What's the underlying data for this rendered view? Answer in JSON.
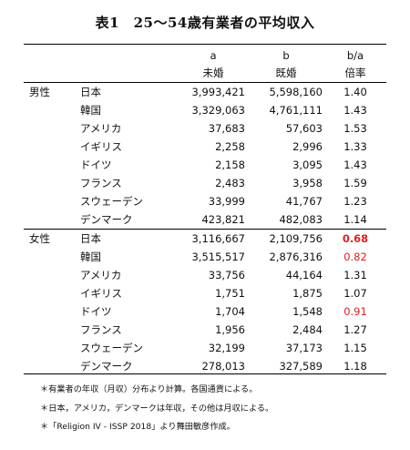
{
  "title": "表1　25～54歳有業者の平均収入",
  "header": {
    "a_label": "a",
    "a_name": "未婚",
    "b_label": "b",
    "b_name": "既婚",
    "ratio_label": "b/a",
    "ratio_name": "倍率"
  },
  "rows": [
    {
      "gender": "男性",
      "country": "日本",
      "a": "3,993,421",
      "b": "5,598,160",
      "ratio": "1.40",
      "style": ""
    },
    {
      "gender": "",
      "country": "韓国",
      "a": "3,329,063",
      "b": "4,761,111",
      "ratio": "1.43",
      "style": ""
    },
    {
      "gender": "",
      "country": "アメリカ",
      "a": "37,683",
      "b": "57,603",
      "ratio": "1.53",
      "style": ""
    },
    {
      "gender": "",
      "country": "イギリス",
      "a": "2,258",
      "b": "2,996",
      "ratio": "1.33",
      "style": ""
    },
    {
      "gender": "",
      "country": "ドイツ",
      "a": "2,158",
      "b": "3,095",
      "ratio": "1.43",
      "style": ""
    },
    {
      "gender": "",
      "country": "フランス",
      "a": "2,483",
      "b": "3,958",
      "ratio": "1.59",
      "style": ""
    },
    {
      "gender": "",
      "country": "スウェーデン",
      "a": "33,999",
      "b": "41,767",
      "ratio": "1.23",
      "style": ""
    },
    {
      "gender": "",
      "country": "デンマーク",
      "a": "423,821",
      "b": "482,083",
      "ratio": "1.14",
      "style": ""
    },
    {
      "gender": "女性",
      "country": "日本",
      "a": "3,116,667",
      "b": "2,109,756",
      "ratio": "0.68",
      "style": "red bold"
    },
    {
      "gender": "",
      "country": "韓国",
      "a": "3,515,517",
      "b": "2,876,316",
      "ratio": "0.82",
      "style": "red"
    },
    {
      "gender": "",
      "country": "アメリカ",
      "a": "33,756",
      "b": "44,164",
      "ratio": "1.31",
      "style": ""
    },
    {
      "gender": "",
      "country": "イギリス",
      "a": "1,751",
      "b": "1,875",
      "ratio": "1.07",
      "style": ""
    },
    {
      "gender": "",
      "country": "ドイツ",
      "a": "1,704",
      "b": "1,548",
      "ratio": "0.91",
      "style": "red"
    },
    {
      "gender": "",
      "country": "フランス",
      "a": "1,956",
      "b": "2,484",
      "ratio": "1.27",
      "style": ""
    },
    {
      "gender": "",
      "country": "スウェーデン",
      "a": "32,199",
      "b": "37,173",
      "ratio": "1.15",
      "style": ""
    },
    {
      "gender": "",
      "country": "デンマーク",
      "a": "278,013",
      "b": "327,589",
      "ratio": "1.18",
      "style": ""
    }
  ],
  "notes": [
    "＊有業者の年収（月収）分布より計算。各国通貨による。",
    "＊日本，アメリカ，デンマークは年収，その他は月収による。",
    "＊「Religion IV - ISSP 2018」より舞田敏彦作成。"
  ],
  "colors": {
    "highlight": "#e02020"
  }
}
